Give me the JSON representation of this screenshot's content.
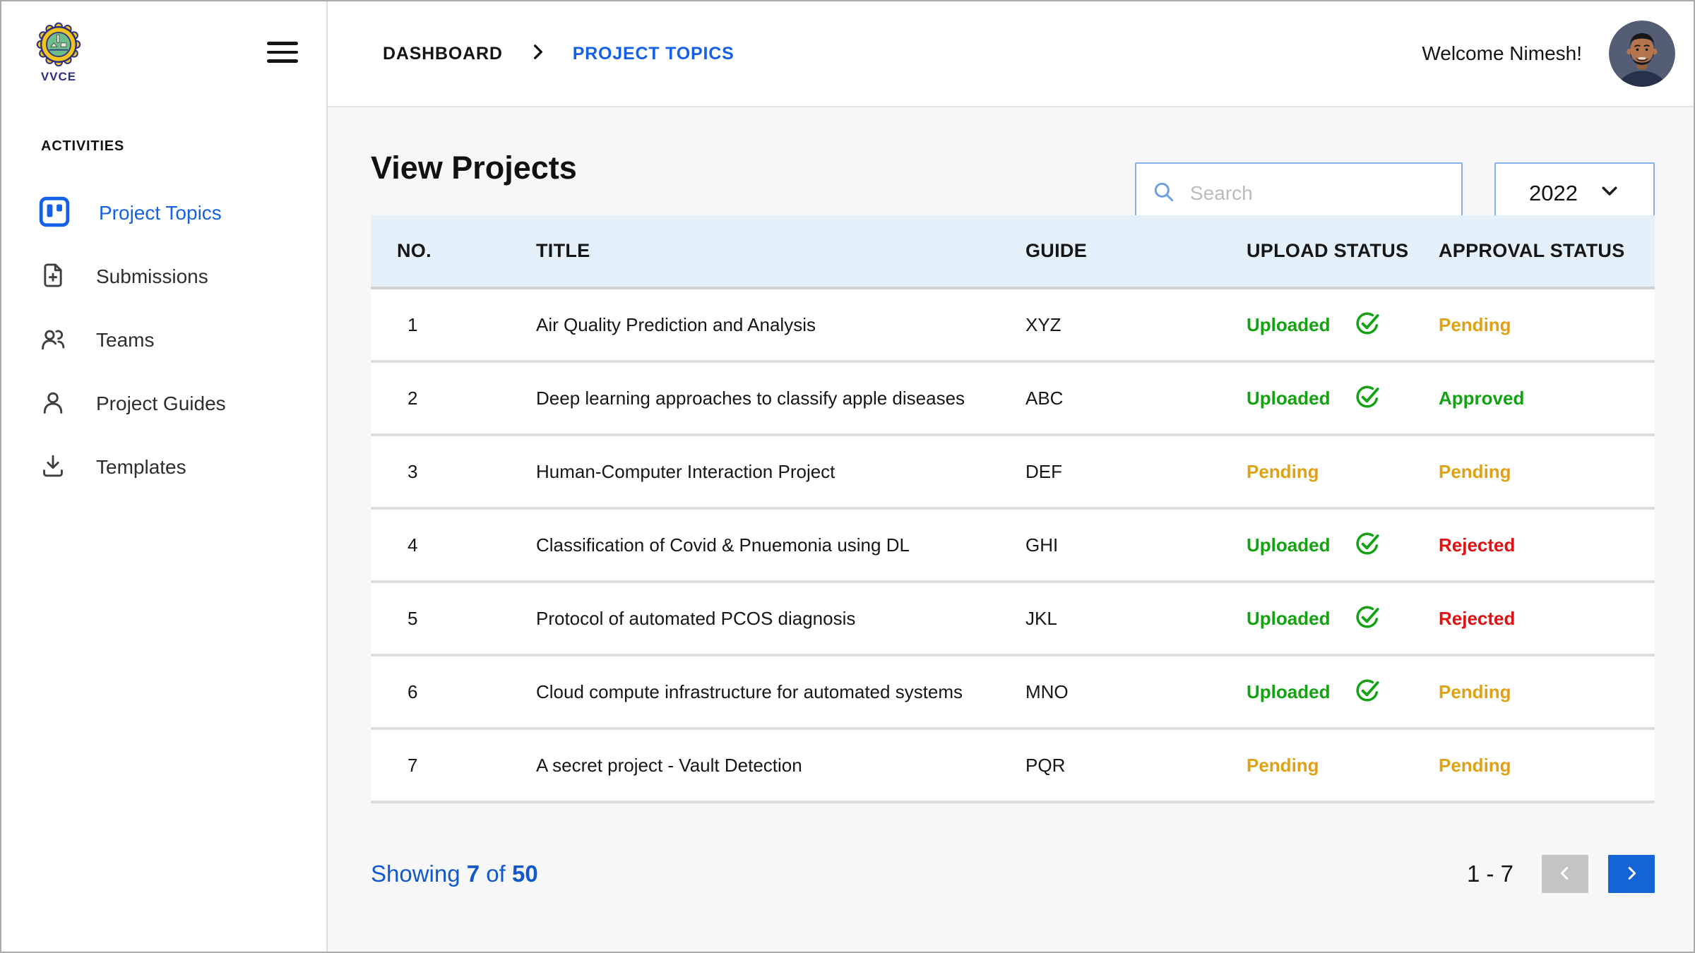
{
  "brand": {
    "logo_label": "VVCE",
    "logo_icon": "college-emblem-gear-icon"
  },
  "header": {
    "breadcrumb": [
      {
        "label": "DASHBOARD",
        "current": false
      },
      {
        "label": "PROJECT TOPICS",
        "current": true
      }
    ],
    "welcome": "Welcome Nimesh!",
    "avatar_icon": "user-avatar"
  },
  "sidebar": {
    "section_title": "ACTIVITIES",
    "items": [
      {
        "label": "Project Topics",
        "icon": "kanban-board-icon",
        "active": true
      },
      {
        "label": "Submissions",
        "icon": "document-add-icon",
        "active": false
      },
      {
        "label": "Teams",
        "icon": "people-icon",
        "active": false
      },
      {
        "label": "Project Guides",
        "icon": "person-icon",
        "active": false
      },
      {
        "label": "Templates",
        "icon": "download-icon",
        "active": false
      }
    ]
  },
  "main": {
    "title": "View Projects",
    "search_placeholder": "Search",
    "year": "2022",
    "table": {
      "headers": [
        "NO.",
        "TITLE",
        "GUIDE",
        "UPLOAD STATUS",
        "APPROVAL STATUS"
      ],
      "rows": [
        {
          "no": "1",
          "title": "Air Quality Prediction and Analysis",
          "guide": "XYZ",
          "upload_status": "Uploaded",
          "upload_state": "uploaded",
          "approval_status": "Pending",
          "approval_state": "pending"
        },
        {
          "no": "2",
          "title": "Deep learning approaches to classify apple diseases",
          "guide": "ABC",
          "upload_status": "Uploaded",
          "upload_state": "uploaded",
          "approval_status": "Approved",
          "approval_state": "approved"
        },
        {
          "no": "3",
          "title": "Human-Computer Interaction Project",
          "guide": "DEF",
          "upload_status": "Pending",
          "upload_state": "pending",
          "approval_status": "Pending",
          "approval_state": "pending"
        },
        {
          "no": "4",
          "title": "Classification of Covid & Pnuemonia using DL",
          "guide": "GHI",
          "upload_status": "Uploaded",
          "upload_state": "uploaded",
          "approval_status": "Rejected",
          "approval_state": "rejected"
        },
        {
          "no": "5",
          "title": "Protocol of automated PCOS diagnosis",
          "guide": "JKL",
          "upload_status": "Uploaded",
          "upload_state": "uploaded",
          "approval_status": "Rejected",
          "approval_state": "rejected"
        },
        {
          "no": "6",
          "title": "Cloud compute infrastructure for automated systems",
          "guide": "MNO",
          "upload_status": "Uploaded",
          "upload_state": "uploaded",
          "approval_status": "Pending",
          "approval_state": "pending"
        },
        {
          "no": "7",
          "title": "A secret project - Vault Detection",
          "guide": "PQR",
          "upload_status": "Pending",
          "upload_state": "pending",
          "approval_status": "Pending",
          "approval_state": "pending"
        }
      ]
    },
    "footer": {
      "label_showing": "Showing",
      "shown_count": "7",
      "label_of": "of",
      "total_count": "50",
      "range_label": "1 - 7"
    }
  },
  "colors": {
    "accent_blue": "#1560e8",
    "link_blue": "#1159cb",
    "success_green": "#12a212",
    "warning_amber": "#dfa216",
    "error_red": "#de1212",
    "table_header_bg": "#e3f0fa",
    "search_border": "#85b2e8",
    "next_button_bg": "#1464d8",
    "prev_button_bg": "#c4c4c4"
  },
  "status_icons": {
    "uploaded": "check-circle-icon"
  }
}
